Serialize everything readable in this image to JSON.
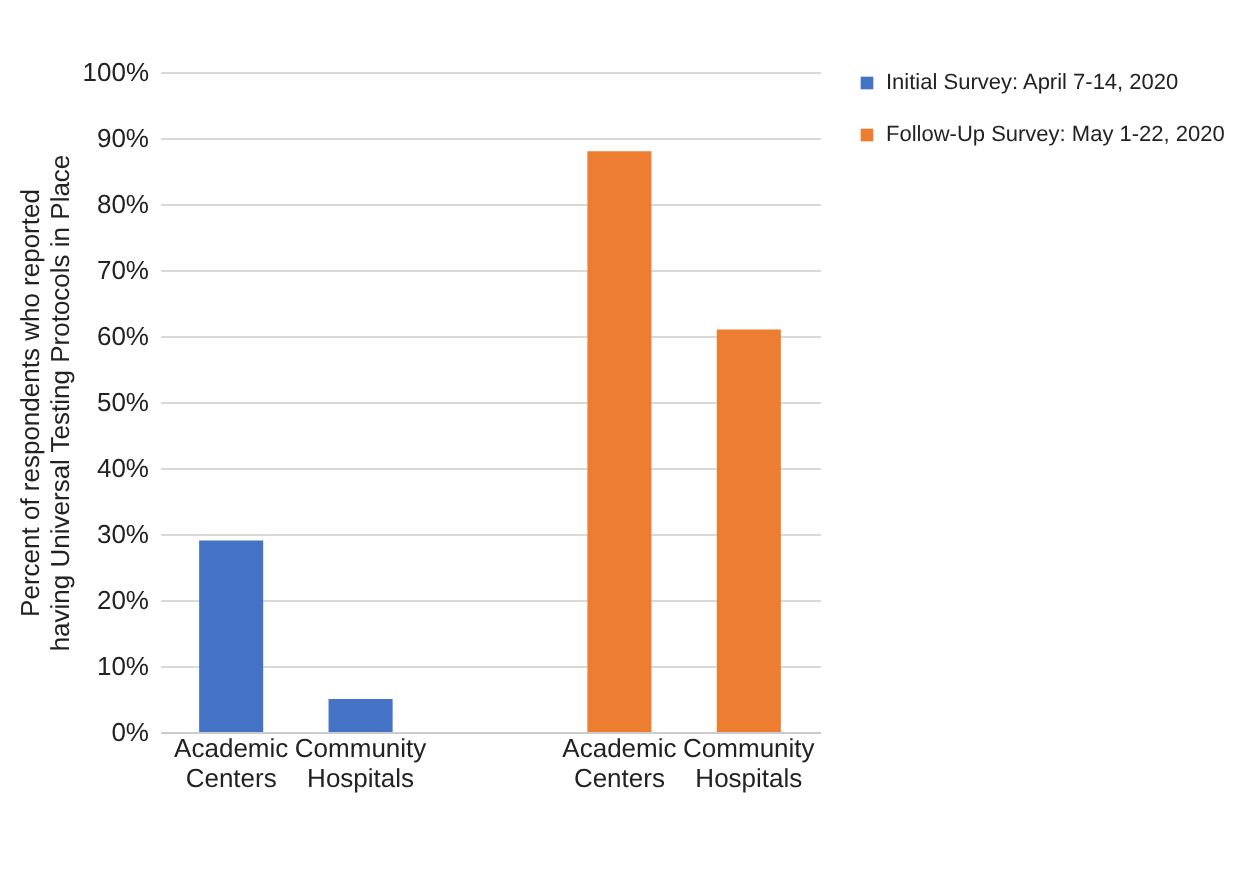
{
  "chart_data": {
    "type": "bar",
    "ylabel": "Percent of respondents who reported having Universal Testing Protocols in Place",
    "categories": [
      "Academic Centers",
      "Community Hospitals",
      null,
      "Academic Centers",
      "Community Hospitals"
    ],
    "series": [
      {
        "name": "Initial Survey: April 7-14, 2020",
        "color": "#4472c4",
        "values": [
          29,
          5,
          null,
          null,
          null
        ]
      },
      {
        "name": "Follow-Up Survey: May 1-22, 2020",
        "color": "#ed7d31",
        "values": [
          null,
          null,
          null,
          88,
          61
        ]
      }
    ],
    "ylim": [
      0,
      100
    ],
    "yticks": [
      {
        "value": 0,
        "label": "0%"
      },
      {
        "value": 10,
        "label": "10%"
      },
      {
        "value": 20,
        "label": "20%"
      },
      {
        "value": 30,
        "label": "30%"
      },
      {
        "value": 40,
        "label": "40%"
      },
      {
        "value": 50,
        "label": "50%"
      },
      {
        "value": 60,
        "label": "60%"
      },
      {
        "value": 70,
        "label": "70%"
      },
      {
        "value": 80,
        "label": "80%"
      },
      {
        "value": 90,
        "label": "90%"
      },
      {
        "value": 100,
        "label": "100%"
      }
    ],
    "grid": "y",
    "legend": "right"
  }
}
